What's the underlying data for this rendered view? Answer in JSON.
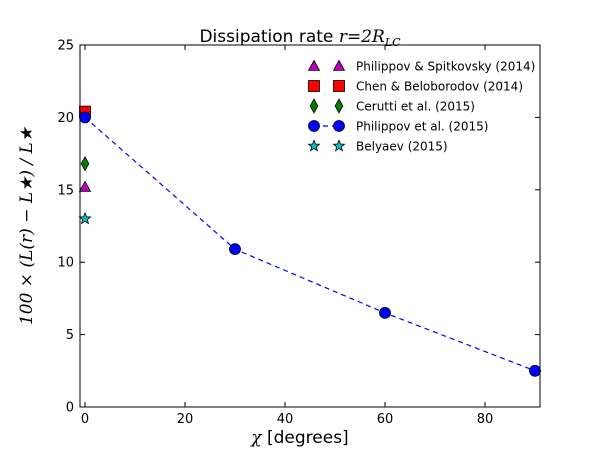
{
  "chart_data": {
    "type": "scatter",
    "title": "Dissipation rate r=2R_LC",
    "title_text": "Dissipation rate ",
    "title_math": "r=2R",
    "title_math_sub": "LC",
    "xlabel_math": "χ",
    "xlabel_text": " [degrees]",
    "ylabel": "100 × (L(r) − L★) / L★",
    "xlim": [
      -1,
      91
    ],
    "ylim": [
      0,
      25
    ],
    "xticks": [
      0,
      20,
      40,
      60,
      80
    ],
    "yticks": [
      0,
      5,
      10,
      15,
      20,
      25
    ],
    "legend_position": "top-right",
    "grid": false,
    "series": [
      {
        "name": "Philippov & Spitkovsky (2014)",
        "marker": "triangle",
        "color": "#bf00bf",
        "line": false,
        "x": [
          0
        ],
        "y": [
          15.2
        ]
      },
      {
        "name": "Chen & Beloborodov (2014)",
        "marker": "square",
        "color": "#ff0000",
        "line": false,
        "x": [
          0
        ],
        "y": [
          20.4
        ]
      },
      {
        "name": "Cerutti et al. (2015)",
        "marker": "diamond",
        "color": "#007f00",
        "line": false,
        "x": [
          0
        ],
        "y": [
          16.8
        ]
      },
      {
        "name": "Philippov et al. (2015)",
        "marker": "circle",
        "color": "#0000ff",
        "line": true,
        "x": [
          0,
          30,
          60,
          90
        ],
        "y": [
          20.0,
          10.9,
          6.5,
          2.5
        ]
      },
      {
        "name": "Belyaev (2015)",
        "marker": "star",
        "color": "#00bfbf",
        "line": false,
        "x": [
          0
        ],
        "y": [
          13.0
        ]
      }
    ]
  }
}
